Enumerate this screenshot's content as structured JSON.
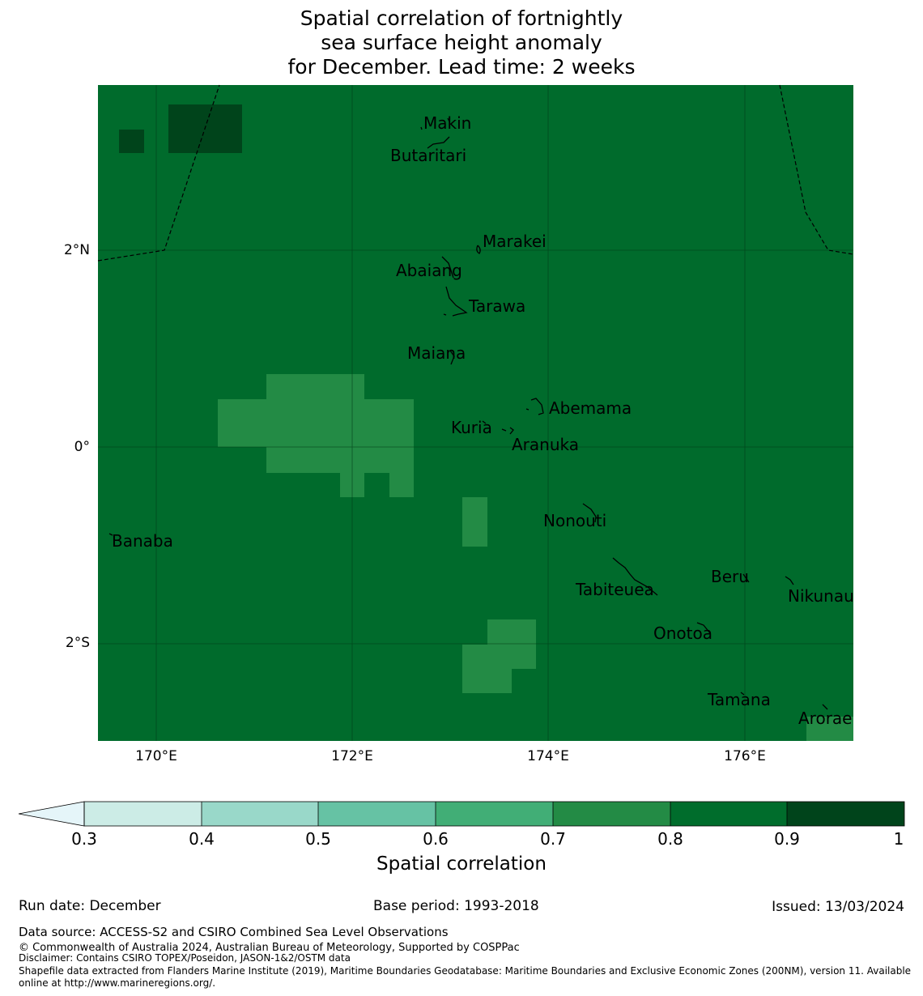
{
  "title": {
    "lines": [
      "Spatial correlation of fortnightly",
      "sea surface height anomaly",
      "for December. Lead time: 2 weeks"
    ]
  },
  "map": {
    "lat_labels": [
      "2°N",
      "0°",
      "2°S"
    ],
    "lon_labels": [
      "170°E",
      "172°E",
      "174°E",
      "176°E"
    ],
    "lon_range": [
      169.4,
      177.1
    ],
    "lat_range": [
      -2.98,
      3.7
    ],
    "background_color": "#006b2c",
    "places": [
      {
        "name": "Makin",
        "lon": 173.0,
        "lat": 3.3
      },
      {
        "name": "Butaritari",
        "lon": 172.8,
        "lat": 3.05
      },
      {
        "name": "Marakei",
        "lon": 173.3,
        "lat": 2.0
      },
      {
        "name": "Abaiang",
        "lon": 172.9,
        "lat": 1.85
      },
      {
        "name": "Tarawa",
        "lon": 173.0,
        "lat": 1.4
      },
      {
        "name": "Maiana",
        "lon": 173.0,
        "lat": 0.95
      },
      {
        "name": "Abemama",
        "lon": 173.85,
        "lat": 0.42
      },
      {
        "name": "Kuria",
        "lon": 173.4,
        "lat": 0.23
      },
      {
        "name": "Aranuka",
        "lon": 173.6,
        "lat": 0.17
      },
      {
        "name": "Banaba",
        "lon": 169.53,
        "lat": -0.87
      },
      {
        "name": "Nonouti",
        "lon": 174.4,
        "lat": -0.63
      },
      {
        "name": "Tabiteuea",
        "lon": 174.8,
        "lat": -1.3
      },
      {
        "name": "Beru",
        "lon": 176.0,
        "lat": -1.33
      },
      {
        "name": "Nikunau",
        "lon": 176.45,
        "lat": -1.35
      },
      {
        "name": "Onotoa",
        "lon": 175.55,
        "lat": -1.8
      },
      {
        "name": "Tamana",
        "lon": 175.98,
        "lat": -2.5
      },
      {
        "name": "Arorae",
        "lon": 176.82,
        "lat": -2.65
      }
    ],
    "cells": [
      {
        "lon0": 169.62,
        "lon1": 169.87,
        "lat0": 3.02,
        "lat1": 3.27,
        "value": 0.92
      },
      {
        "lon0": 170.12,
        "lon1": 170.87,
        "lat0": 3.02,
        "lat1": 3.52,
        "value": 0.92
      },
      {
        "lon0": 171.12,
        "lon1": 172.12,
        "lat0": 0.75,
        "lat1": 0.75,
        "value": 0.75
      },
      {
        "lon0": 170.62,
        "lon1": 172.62,
        "lat0": 0.25,
        "lat1": 0.5,
        "value": 0.75
      },
      {
        "lon0": 171.12,
        "lon1": 172.62,
        "lat0": -0.25,
        "lat1": 0.25,
        "value": 0.75
      },
      {
        "lon0": 171.87,
        "lon1": 172.12,
        "lat0": -0.5,
        "lat1": -0.25,
        "value": 0.75
      },
      {
        "lon0": 172.37,
        "lon1": 172.62,
        "lat0": -0.5,
        "lat1": -0.25,
        "value": 0.75
      },
      {
        "lon0": 173.12,
        "lon1": 173.37,
        "lat0": -1.0,
        "lat1": -0.5,
        "value": 0.75
      },
      {
        "lon0": 173.37,
        "lon1": 173.87,
        "lat0": -2.25,
        "lat1": -1.75,
        "value": 0.75
      },
      {
        "lon0": 173.12,
        "lon1": 173.62,
        "lat0": -2.5,
        "lat1": -2.0,
        "value": 0.75
      },
      {
        "lon0": 176.62,
        "lon1": 177.1,
        "lat0": -2.98,
        "lat1": -2.75,
        "value": 0.75
      }
    ]
  },
  "colorbar": {
    "label": "Spatial correlation",
    "ticks": [
      "0.3",
      "0.4",
      "0.5",
      "0.6",
      "0.7",
      "0.8",
      "0.9",
      "1"
    ],
    "under_color": "#e5f5f9",
    "colors": [
      "#ccece6",
      "#99d8c9",
      "#66c2a4",
      "#41ae76",
      "#238b45",
      "#006d2c",
      "#00441b"
    ]
  },
  "footer": {
    "run_date": "Run date: December",
    "base_period": "Base period: 1993-2018",
    "issued": "Issued: 13/03/2024",
    "data_source": "Data source: ACCESS-S2 and CSIRO Combined Sea Level Observations",
    "copyright": "© Commonwealth of Australia 2024, Australian Bureau of Meteorology, Supported by COSPPac",
    "disclaimer": "Disclaimer: Contains CSIRO TOPEX/Poseidon, JASON-1&2/OSTM data",
    "shapefile_1": "Shapefile data extracted from Flanders Marine Institute (2019), Maritime Boundaries Geodatabase: Maritime Boundaries and Exclusive Economic Zones (200NM), version 11. Available",
    "shapefile_2": "online at http://www.marineregions.org/."
  }
}
